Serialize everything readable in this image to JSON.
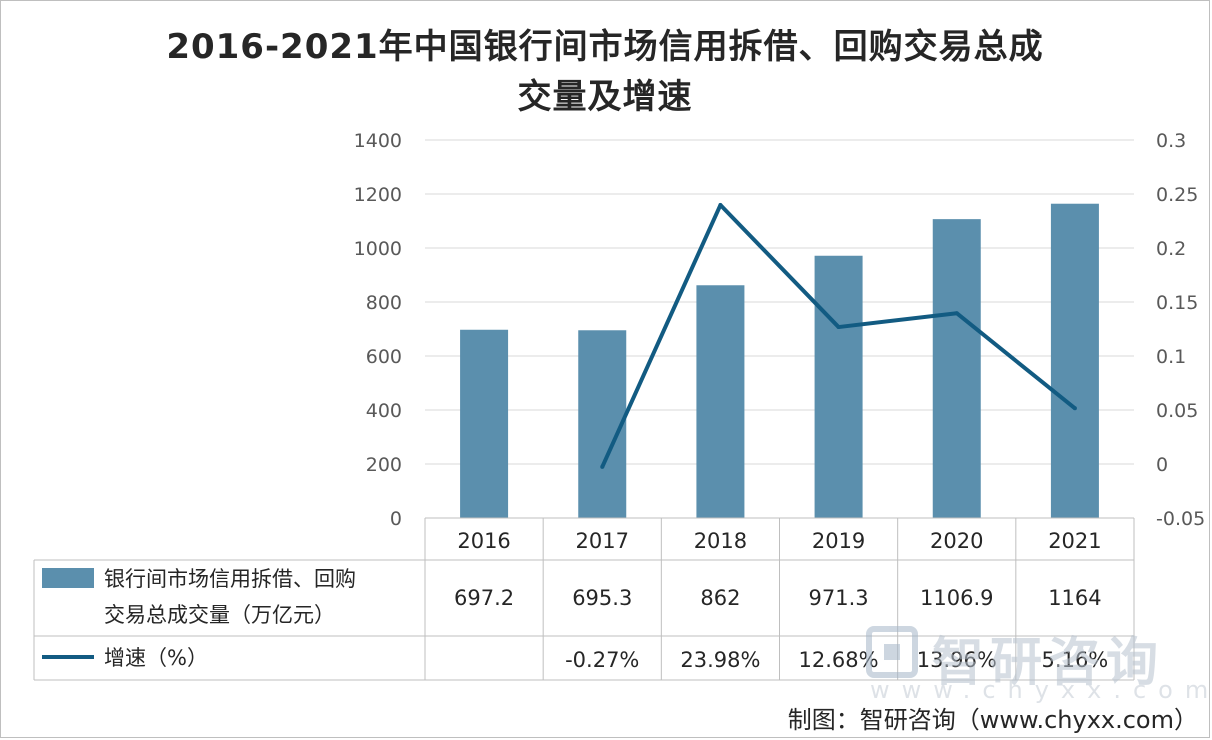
{
  "title": "2016-2021年中国银行间市场信用拆借、回购交易总成交量及增速",
  "title_line1": "2016-2021年中国银行间市场信用拆借、回购交易总成",
  "title_line2": "交量及增速",
  "colors": {
    "bar": "#5b8fad",
    "line": "#125b82",
    "grid": "#d9d9d9",
    "table_border": "#bfbfbf"
  },
  "chart_data": {
    "type": "bar",
    "title": "2016-2021年中国银行间市场信用拆借、回购交易总成交量及增速",
    "categories": [
      "2016",
      "2017",
      "2018",
      "2019",
      "2020",
      "2021"
    ],
    "series": [
      {
        "name": "银行间市场信用拆借、回购交易总成交量（万亿元）",
        "name_line1": "银行间市场信用拆借、回购",
        "name_line2": "交易总成交量（万亿元）",
        "type": "bar",
        "axis": "left",
        "values": [
          697.2,
          695.3,
          862,
          971.3,
          1106.9,
          1164
        ],
        "labels": [
          "697.2",
          "695.3",
          "862",
          "971.3",
          "1106.9",
          "1164"
        ]
      },
      {
        "name": "增速（%）",
        "type": "line",
        "axis": "right",
        "values": [
          null,
          -0.0027,
          0.2398,
          0.1268,
          0.1396,
          0.0516
        ],
        "labels": [
          "",
          "-0.27%",
          "23.98%",
          "12.68%",
          "13.96%",
          "5.16%"
        ]
      }
    ],
    "y_left": {
      "min": 0,
      "max": 1400,
      "step": 200,
      "ticks": [
        "0",
        "200",
        "400",
        "600",
        "800",
        "1000",
        "1200",
        "1400"
      ]
    },
    "y_right": {
      "min": -0.05,
      "max": 0.3,
      "step": 0.05,
      "ticks": [
        "-0.05",
        "0",
        "0.05",
        "0.1",
        "0.15",
        "0.2",
        "0.25",
        "0.3"
      ]
    },
    "grid": true,
    "legend": "data-table"
  },
  "watermark": {
    "name": "智研咨询",
    "url": "www.chyxx.com"
  },
  "source": "制图：智研咨询（www.chyxx.com）"
}
